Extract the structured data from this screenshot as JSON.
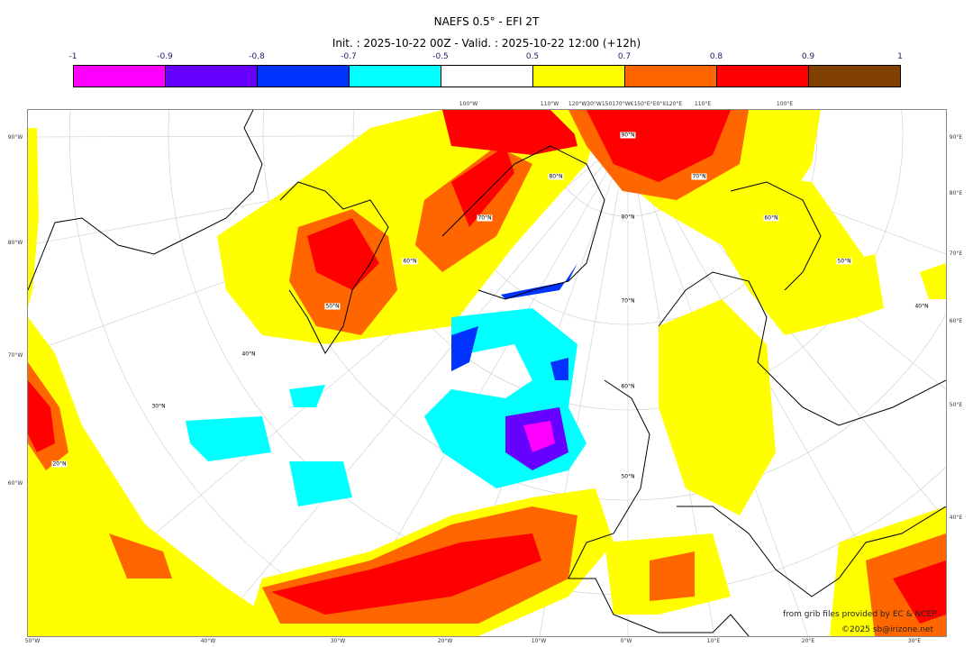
{
  "title": "NAEFS 0.5° - EFI 2T",
  "subtitle": "Init. : 2025-10-22 00Z - Valid. : 2025-10-22 12:00 (+12h)",
  "colorbar": {
    "ticks": [
      "-1",
      "-0.9",
      "-0.8",
      "-0.7",
      "-0.5",
      "0.5",
      "0.7",
      "0.8",
      "0.9",
      "1"
    ],
    "colors": [
      "#ff00ff",
      "#6600ff",
      "#0033ff",
      "#00ffff",
      "#ffffff",
      "#ffff00",
      "#ff6600",
      "#ff0000",
      "#804000"
    ]
  },
  "map": {
    "top_labels": [
      "100°W",
      "110°W",
      "120°W30°W150170°W€150°E°E0°II120°E",
      "110°E",
      "100°E"
    ],
    "bottom_labels": [
      "50°W",
      "40°W",
      "30°W",
      "20°W",
      "10°W",
      "0°W",
      "10°E",
      "20°E",
      "30°E"
    ],
    "left_labels": [
      "90°W",
      "80°W",
      "70°W",
      "60°W"
    ],
    "right_labels": [
      "90°E",
      "80°E",
      "70°E",
      "60°E",
      "50°E",
      "40°E"
    ],
    "inner_labels": [
      "90°N",
      "80°N",
      "70°N",
      "60°N",
      "50°N",
      "40°N",
      "30°N",
      "20°N",
      "80°N",
      "70°N",
      "60°N",
      "50°N",
      "70°N",
      "60°N",
      "50°N",
      "40°N"
    ],
    "credit_line1": "from grib files provided by EC & NCEP",
    "credit_line2": "©2025 sb@irizone.net"
  }
}
